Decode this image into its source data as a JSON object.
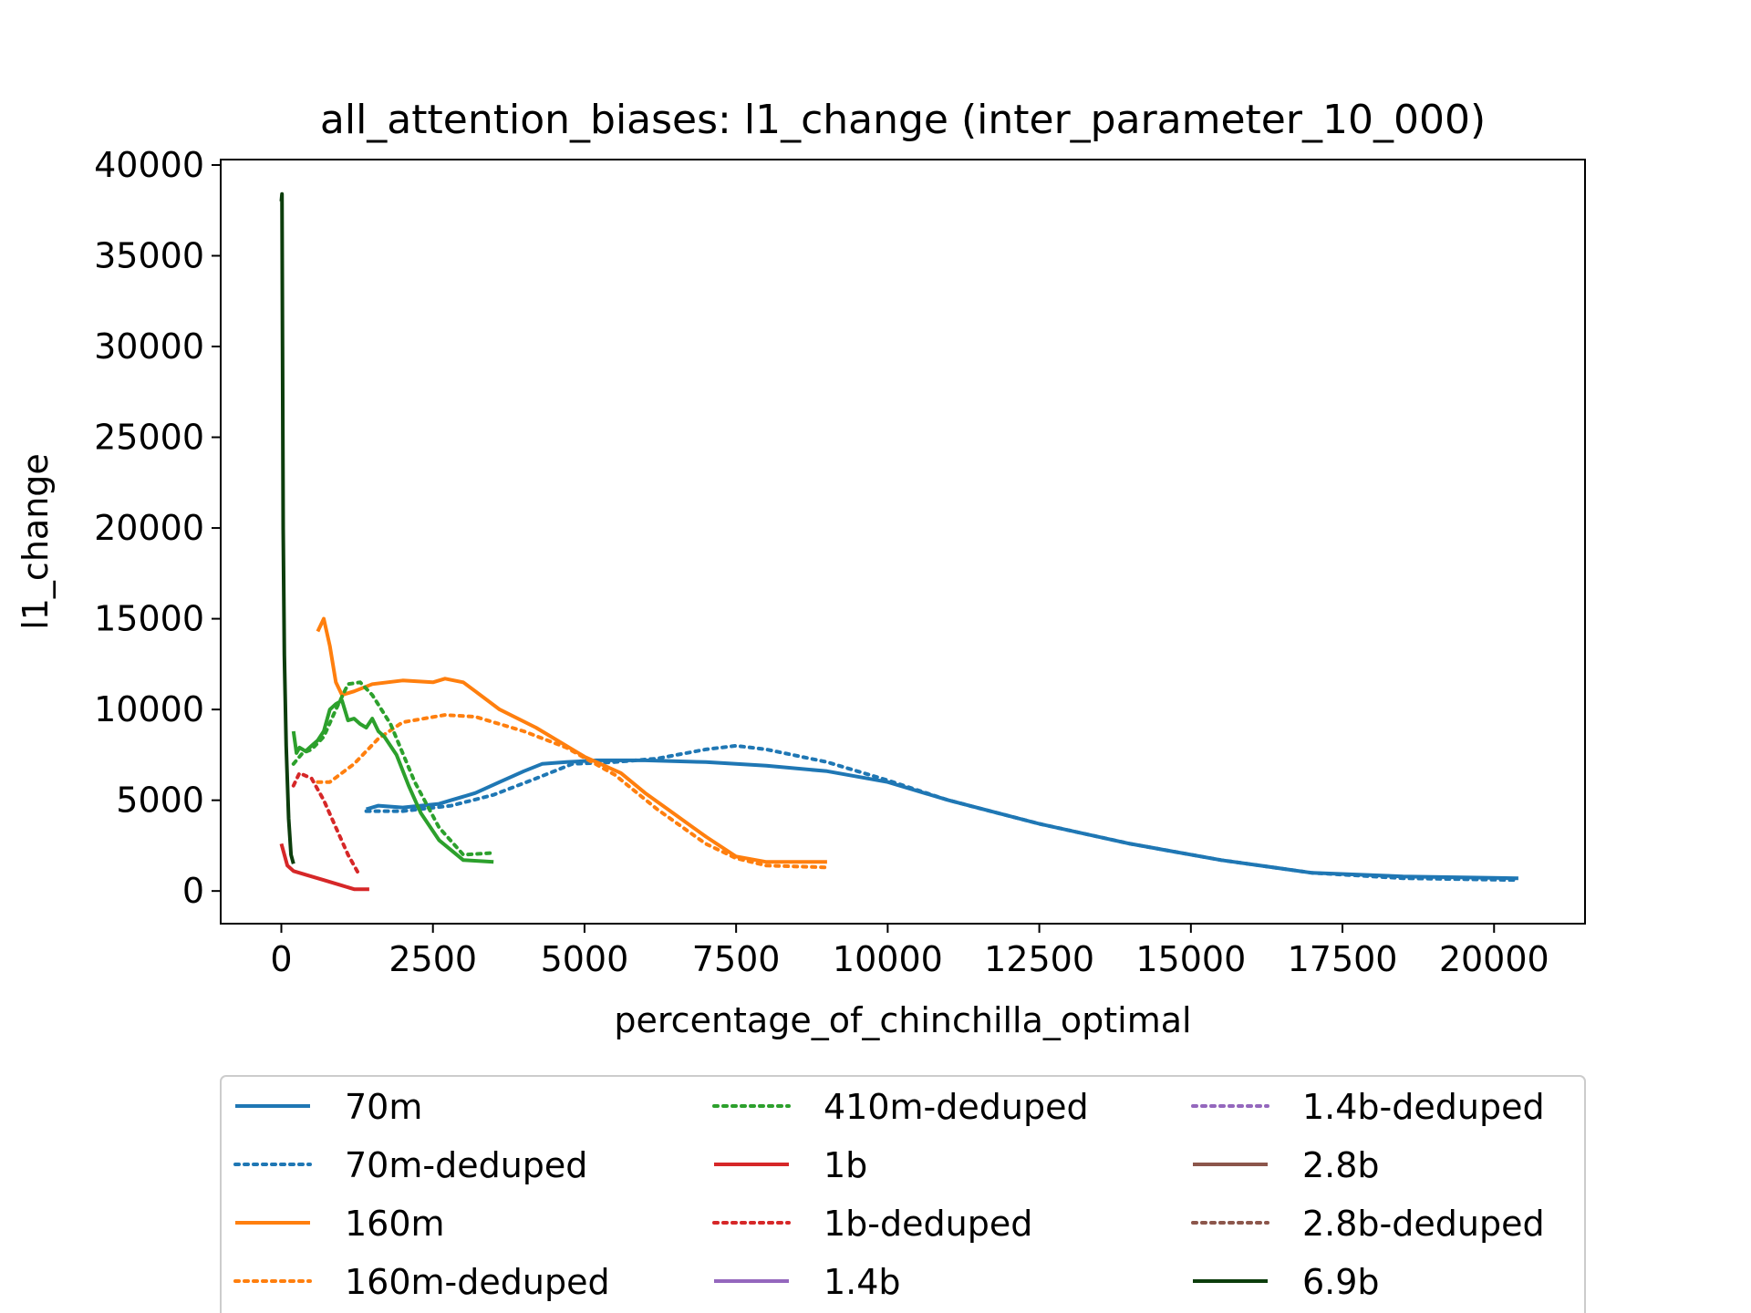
{
  "chart_data": {
    "type": "line",
    "title": "all_attention_biases: l1_change (inter_parameter_10_000)",
    "xlabel": "percentage_of_chinchilla_optimal",
    "ylabel": "l1_change",
    "xlim": [
      -1000,
      21500
    ],
    "ylim": [
      -1800,
      40300
    ],
    "xticks": [
      0,
      2500,
      5000,
      7500,
      10000,
      12500,
      15000,
      17500,
      20000
    ],
    "yticks": [
      0,
      5000,
      10000,
      15000,
      20000,
      25000,
      30000,
      35000,
      40000
    ],
    "grid": false,
    "legend_position": "below",
    "legend_columns": 3,
    "series": [
      {
        "name": "70m",
        "color": "#1f77b4",
        "style": "solid",
        "x": [
          1400,
          1600,
          2000,
          2600,
          2800,
          3200,
          3600,
          4000,
          4300,
          4700,
          5200,
          6000,
          7000,
          8000,
          9000,
          10000,
          11000,
          12500,
          14000,
          15500,
          17000,
          18500,
          20400
        ],
        "y": [
          4500,
          4700,
          4600,
          4800,
          5000,
          5400,
          6000,
          6600,
          7000,
          7100,
          7200,
          7200,
          7100,
          6900,
          6600,
          6000,
          5000,
          3700,
          2600,
          1700,
          1000,
          800,
          700
        ]
      },
      {
        "name": "70m-deduped",
        "color": "#1f77b4",
        "style": "dotted",
        "x": [
          1400,
          2000,
          2800,
          3500,
          4200,
          4800,
          5500,
          6200,
          7000,
          7500,
          8000,
          9000,
          10000,
          11000,
          12500,
          14000,
          15500,
          17000,
          18500,
          20400
        ],
        "y": [
          4400,
          4400,
          4700,
          5300,
          6200,
          7000,
          7100,
          7300,
          7800,
          8000,
          7800,
          7100,
          6100,
          5000,
          3700,
          2600,
          1700,
          1000,
          700,
          600
        ]
      },
      {
        "name": "160m",
        "color": "#ff7f0e",
        "style": "solid",
        "x": [
          600,
          700,
          800,
          900,
          1000,
          1200,
          1500,
          2000,
          2500,
          2700,
          3000,
          3200,
          3600,
          4200,
          5000,
          5600,
          6000,
          6500,
          7000,
          7500,
          8000,
          9000
        ],
        "y": [
          14300,
          15000,
          13500,
          11500,
          10800,
          11000,
          11400,
          11600,
          11500,
          11700,
          11500,
          11000,
          10000,
          9000,
          7400,
          6500,
          5400,
          4200,
          3000,
          1900,
          1600,
          1600
        ]
      },
      {
        "name": "160m-deduped",
        "color": "#ff7f0e",
        "style": "dotted",
        "x": [
          600,
          800,
          1200,
          1600,
          2000,
          2700,
          3200,
          4000,
          4700,
          5500,
          6200,
          7000,
          7500,
          8000,
          9000
        ],
        "y": [
          6000,
          6000,
          7000,
          8400,
          9300,
          9700,
          9600,
          8800,
          7900,
          6400,
          4500,
          2600,
          1800,
          1400,
          1300
        ]
      },
      {
        "name": "410m-deduped",
        "color": "#2ca02c",
        "style": "dotted",
        "x": [
          200,
          350,
          500,
          700,
          900,
          1100,
          1300,
          1500,
          1800,
          2200,
          2600,
          3000,
          3500
        ],
        "y": [
          7000,
          7600,
          7800,
          8500,
          10000,
          11400,
          11500,
          10800,
          9200,
          6000,
          3500,
          2000,
          2100
        ]
      },
      {
        "name": "410m",
        "color": "#2ca02c",
        "style": "solid",
        "x": [
          200,
          250,
          300,
          400,
          500,
          600,
          700,
          800,
          900,
          1000,
          1100,
          1200,
          1300,
          1400,
          1500,
          1600,
          1700,
          1900,
          2100,
          2300,
          2600,
          3000,
          3500
        ],
        "y": [
          8800,
          7600,
          7900,
          7700,
          8000,
          8300,
          8800,
          10000,
          10300,
          10500,
          9400,
          9500,
          9200,
          9000,
          9500,
          8800,
          8500,
          7500,
          5800,
          4300,
          2800,
          1700,
          1600
        ]
      },
      {
        "name": "1b",
        "color": "#d62728",
        "style": "solid",
        "x": [
          0,
          100,
          200,
          400,
          700,
          1000,
          1200,
          1450
        ],
        "y": [
          2600,
          1400,
          1100,
          900,
          600,
          300,
          100,
          100
        ]
      },
      {
        "name": "1b-deduped",
        "color": "#d62728",
        "style": "dotted",
        "x": [
          200,
          300,
          500,
          700,
          900,
          1100,
          1300
        ],
        "y": [
          5800,
          6500,
          6200,
          5000,
          3500,
          2000,
          800
        ]
      },
      {
        "name": "1.4b",
        "color": "#9467bd",
        "style": "solid",
        "x": [],
        "y": []
      },
      {
        "name": "1.4b-deduped",
        "color": "#9467bd",
        "style": "dotted",
        "x": [],
        "y": []
      },
      {
        "name": "2.8b",
        "color": "#8c564b",
        "style": "solid",
        "x": [],
        "y": []
      },
      {
        "name": "2.8b-deduped",
        "color": "#8c564b",
        "style": "dotted",
        "x": [],
        "y": []
      },
      {
        "name": "6.9b",
        "color": "#0c3d0c",
        "style": "solid",
        "x": [
          0,
          10,
          20,
          30,
          50,
          80,
          120,
          160,
          200
        ],
        "y": [
          38000,
          38400,
          30000,
          20000,
          13000,
          8000,
          4000,
          2000,
          1500
        ]
      }
    ],
    "legend_order": [
      "70m",
      "70m-deduped",
      "160m",
      "160m-deduped",
      "410m-deduped",
      "1b",
      "1b-deduped",
      "1.4b",
      "1.4b-deduped",
      "2.8b",
      "2.8b-deduped",
      "6.9b"
    ]
  }
}
